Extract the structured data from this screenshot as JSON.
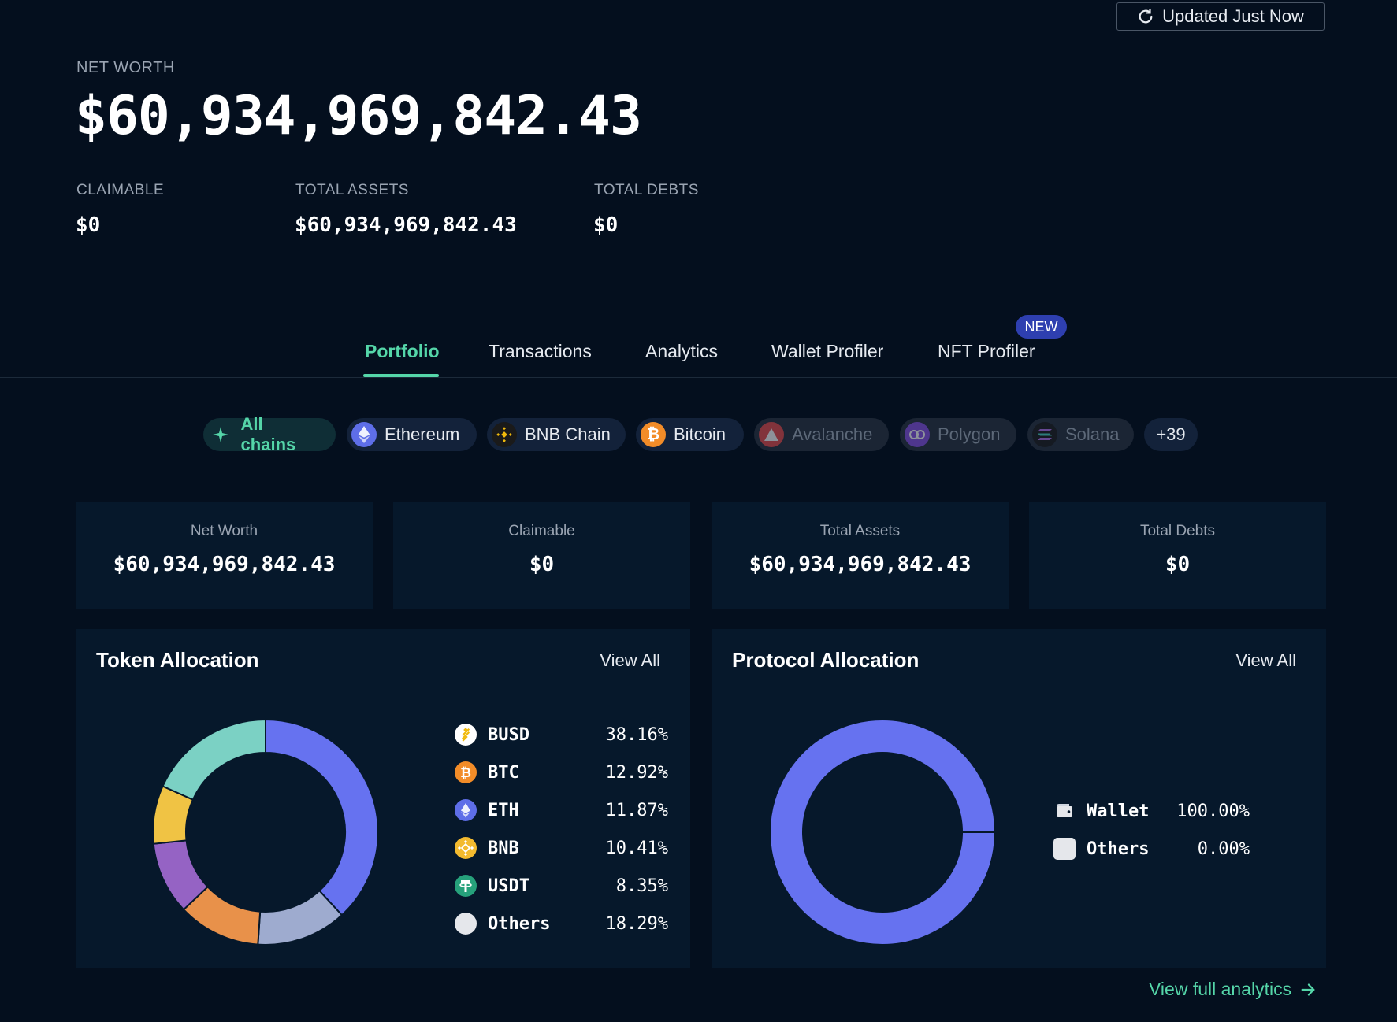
{
  "header": {
    "update_label": "Updated Just Now",
    "net_worth_label": "NET WORTH",
    "net_worth_value": "$60,934,969,842.43",
    "claimable_label": "CLAIMABLE",
    "claimable_value": "$0",
    "total_assets_label": "TOTAL ASSETS",
    "total_assets_value": "$60,934,969,842.43",
    "total_debts_label": "TOTAL DEBTS",
    "total_debts_value": "$0"
  },
  "tabs": [
    {
      "label": "Portfolio",
      "active": true
    },
    {
      "label": "Transactions"
    },
    {
      "label": "Analytics"
    },
    {
      "label": "Wallet Profiler"
    },
    {
      "label": "NFT Profiler",
      "badge": "NEW"
    }
  ],
  "chains": [
    {
      "label": "All chains",
      "icon": "sparkle-icon",
      "active": true
    },
    {
      "label": "Ethereum",
      "icon": "ethereum-icon"
    },
    {
      "label": "BNB Chain",
      "icon": "bnb-chain-icon"
    },
    {
      "label": "Bitcoin",
      "icon": "bitcoin-icon"
    },
    {
      "label": "Avalanche",
      "icon": "avalanche-icon",
      "disabled": true
    },
    {
      "label": "Polygon",
      "icon": "polygon-icon",
      "disabled": true
    },
    {
      "label": "Solana",
      "icon": "solana-icon",
      "disabled": true
    },
    {
      "label": "+39"
    }
  ],
  "summary": [
    {
      "label": "Net Worth",
      "value": "$60,934,969,842.43"
    },
    {
      "label": "Claimable",
      "value": "$0"
    },
    {
      "label": "Total Assets",
      "value": "$60,934,969,842.43"
    },
    {
      "label": "Total Debts",
      "value": "$0"
    }
  ],
  "token_allocation": {
    "title": "Token Allocation",
    "view_all": "View All",
    "items": [
      {
        "name": "BUSD",
        "pct": "38.16%",
        "value": 38.16,
        "color": "#6672f0",
        "icon": "busd-icon"
      },
      {
        "name": "BTC",
        "pct": "12.92%",
        "value": 12.92,
        "color": "#9eabcf",
        "icon": "bitcoin-icon"
      },
      {
        "name": "ETH",
        "pct": "11.87%",
        "value": 11.87,
        "color": "#e8914a",
        "icon": "ethereum-icon"
      },
      {
        "name": "BNB",
        "pct": "10.41%",
        "value": 10.41,
        "color": "#9563c4",
        "icon": "bnb-icon"
      },
      {
        "name": "USDT",
        "pct": "8.35%",
        "value": 8.35,
        "color": "#f0c344",
        "icon": "tether-icon"
      },
      {
        "name": "Others",
        "pct": "18.29%",
        "value": 18.29,
        "color": "#7bd1c4",
        "icon": "others-icon"
      }
    ]
  },
  "protocol_allocation": {
    "title": "Protocol Allocation",
    "view_all": "View All",
    "items": [
      {
        "name": "Wallet",
        "pct": "100.00%",
        "value": 100.0,
        "color": "#6672f0",
        "icon": "wallet-icon"
      },
      {
        "name": "Others",
        "pct": "0.00%",
        "value": 0.0,
        "color": "#e5e7eb",
        "icon": "others-icon"
      }
    ]
  },
  "footer": {
    "view_full_analytics": "View full analytics"
  }
}
